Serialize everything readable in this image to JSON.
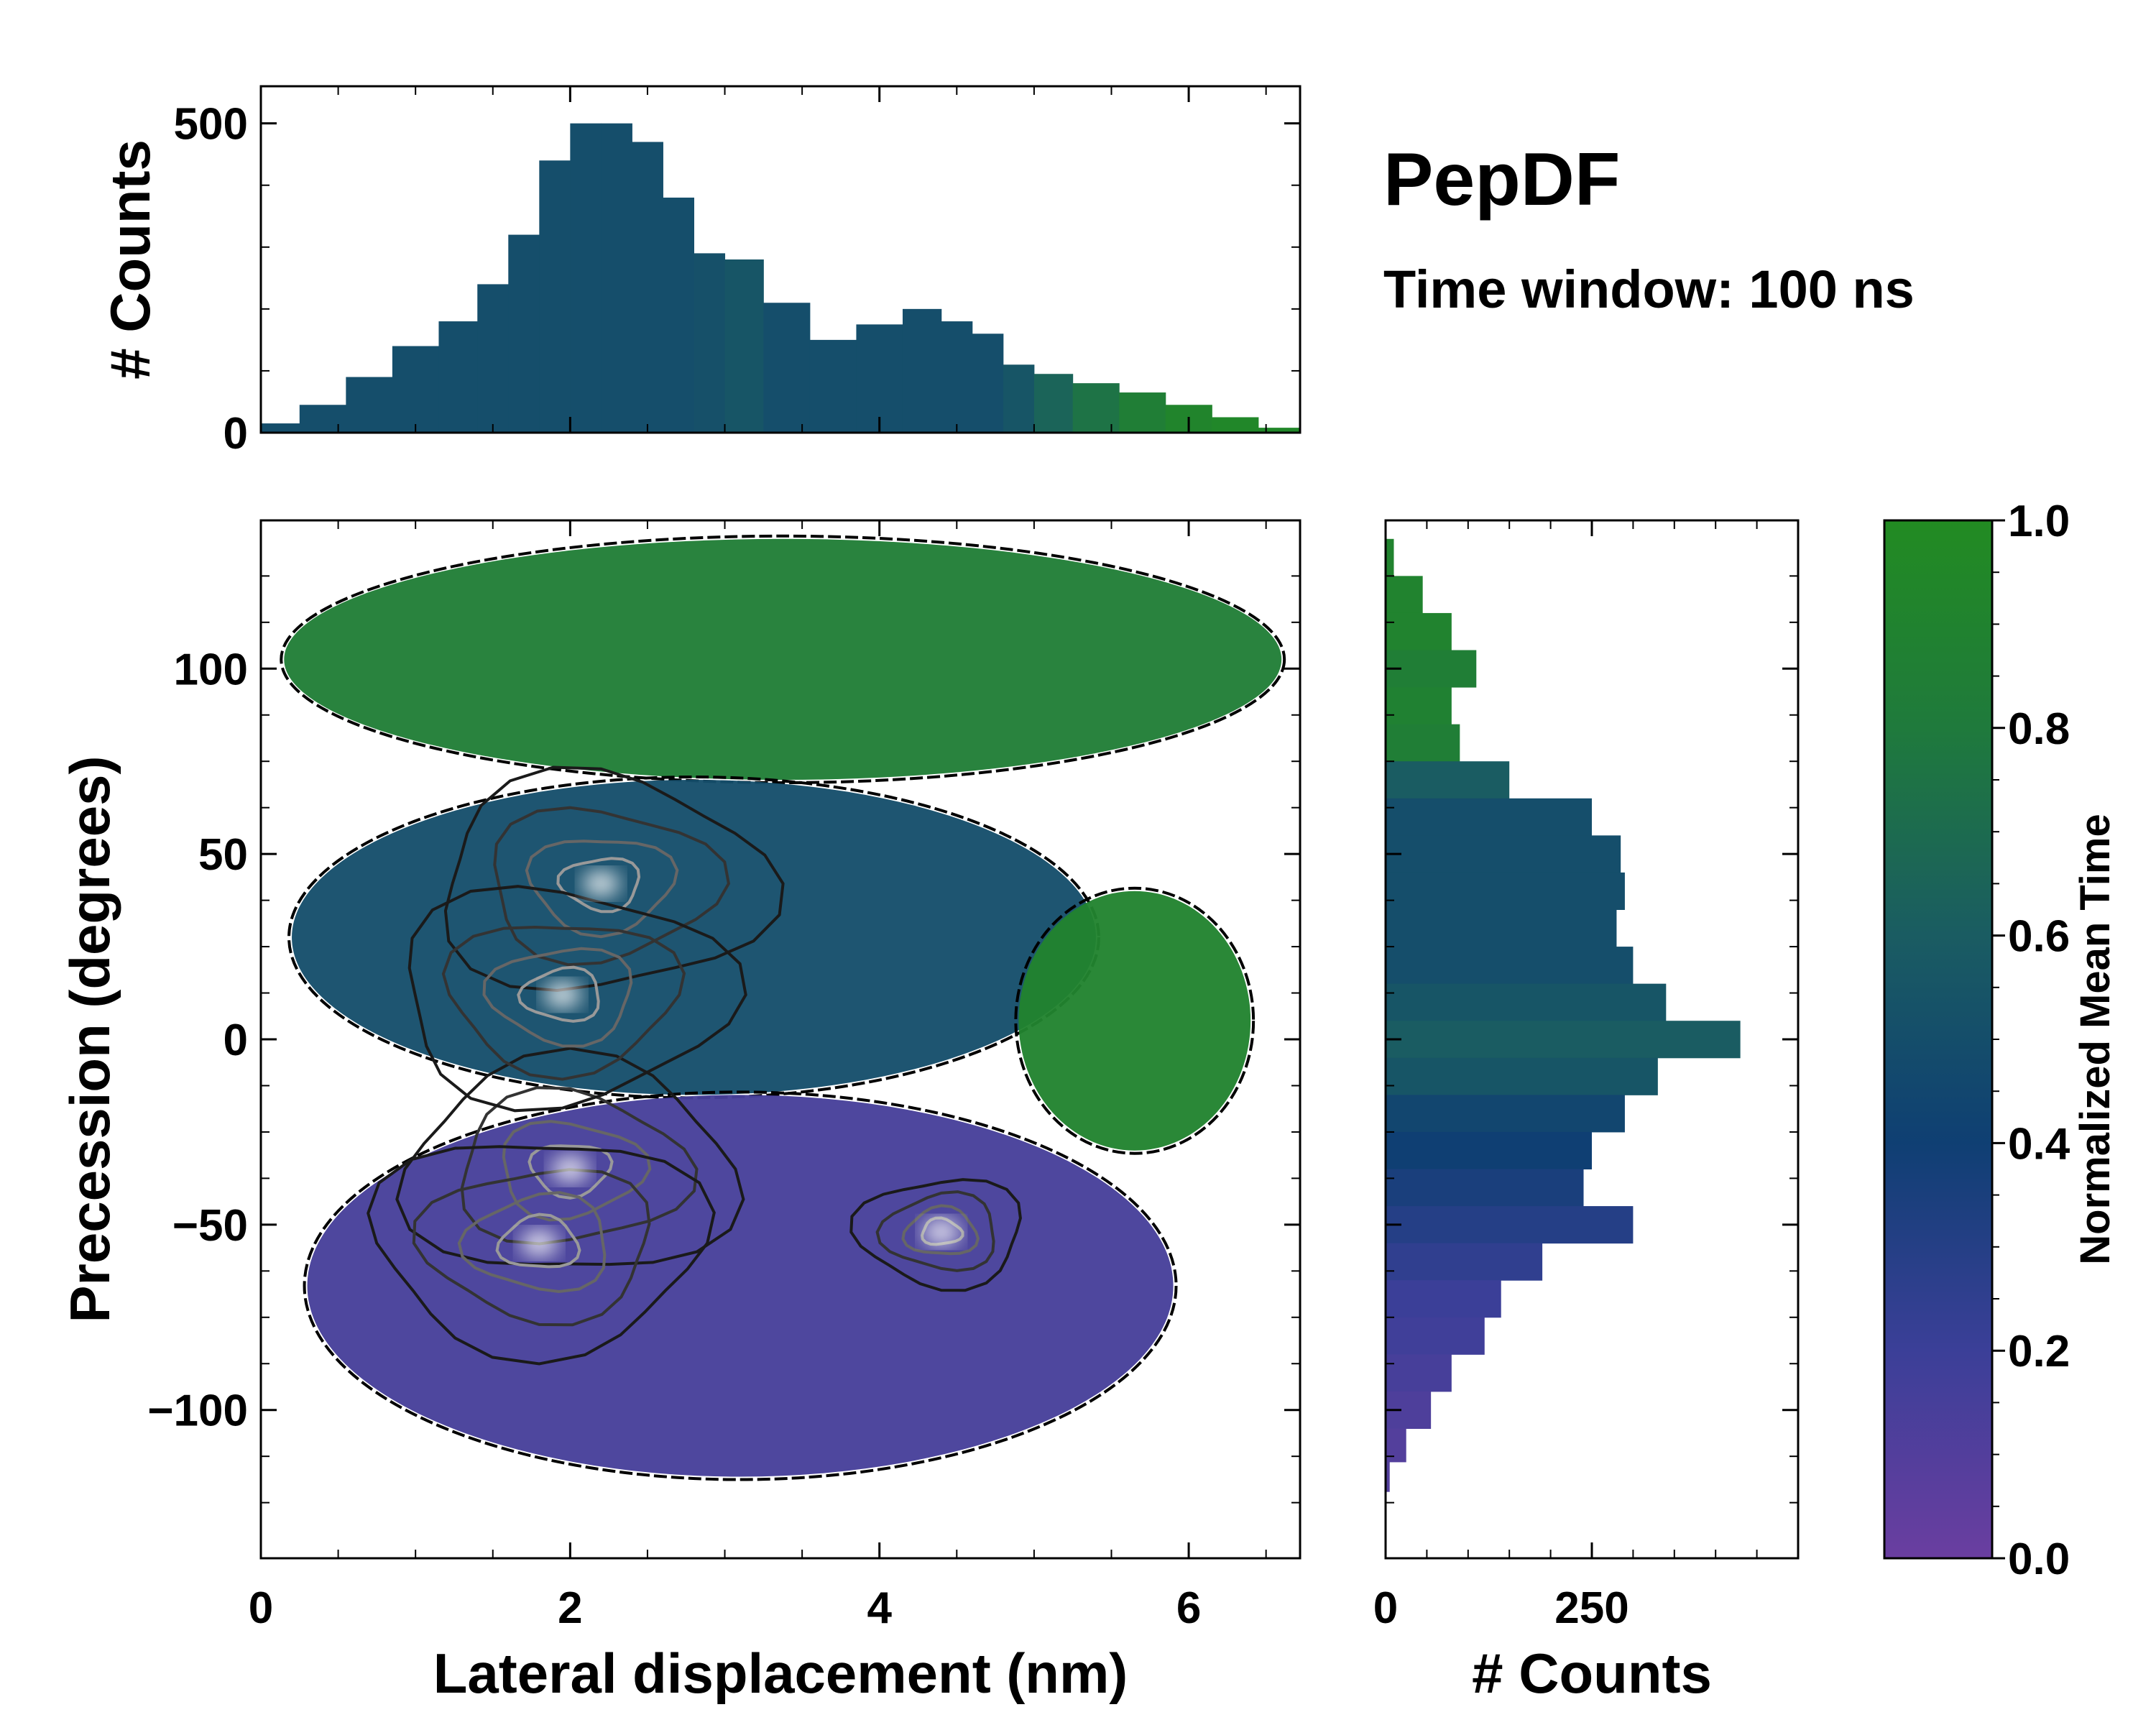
{
  "figure": {
    "title": "PepDF",
    "subtitle": "Time window: 100 ns"
  },
  "chart_data": [
    {
      "id": "joint",
      "type": "heatmap",
      "xlabel": "Lateral displacement (nm)",
      "ylabel": "Precession (degrees)",
      "xlim": [
        0,
        6.72
      ],
      "ylim": [
        -140,
        140
      ],
      "xticks": [
        0,
        2,
        4,
        6
      ],
      "yticks": [
        -100,
        -50,
        0,
        50,
        100
      ],
      "ytick_labels": [
        "−100",
        "−50",
        "0",
        "50",
        "100"
      ],
      "regions": [
        {
          "name": "upper",
          "mean_time": 0.85,
          "x_range": [
            0.15,
            6.6
          ],
          "y_range": [
            70,
            135
          ]
        },
        {
          "name": "central",
          "mean_time": 0.5,
          "x_range": [
            0.2,
            5.4
          ],
          "y_range": [
            -15,
            70
          ]
        },
        {
          "name": "right-lobe",
          "mean_time": 0.9,
          "x_range": [
            4.9,
            6.4
          ],
          "y_range": [
            -30,
            40
          ]
        },
        {
          "name": "lower",
          "mean_time": 0.15,
          "x_range": [
            0.3,
            5.9
          ],
          "y_range": [
            -118,
            -15
          ]
        }
      ],
      "density_peaks": [
        {
          "x": 2.0,
          "y": -35
        },
        {
          "x": 2.2,
          "y": 42
        },
        {
          "x": 1.95,
          "y": 12
        },
        {
          "x": 1.8,
          "y": -55
        },
        {
          "x": 4.4,
          "y": -52
        }
      ]
    },
    {
      "id": "top-marginal",
      "type": "bar",
      "xlabel": "",
      "ylabel": "# Counts",
      "xlim": [
        0,
        6.72
      ],
      "ylim": [
        0,
        560
      ],
      "yticks": [
        0,
        500
      ],
      "x": [
        0.1,
        0.4,
        0.7,
        1.0,
        1.3,
        1.5,
        1.7,
        1.9,
        2.1,
        2.3,
        2.5,
        2.7,
        2.9,
        3.1,
        3.4,
        3.7,
        4.0,
        4.3,
        4.5,
        4.7,
        4.9,
        5.1,
        5.4,
        5.7,
        6.0,
        6.3,
        6.6
      ],
      "values": [
        15,
        45,
        90,
        140,
        180,
        240,
        320,
        440,
        500,
        500,
        470,
        380,
        290,
        280,
        210,
        150,
        175,
        200,
        180,
        160,
        110,
        95,
        80,
        65,
        45,
        25,
        8
      ],
      "color_time": [
        0.5,
        0.5,
        0.5,
        0.5,
        0.5,
        0.5,
        0.5,
        0.5,
        0.5,
        0.5,
        0.5,
        0.5,
        0.52,
        0.55,
        0.5,
        0.5,
        0.5,
        0.5,
        0.5,
        0.5,
        0.55,
        0.65,
        0.75,
        0.85,
        0.92,
        0.95,
        0.95
      ]
    },
    {
      "id": "right-marginal",
      "type": "bar",
      "orientation": "horizontal",
      "xlabel": "# Counts",
      "ylabel": "",
      "xlim": [
        0,
        500
      ],
      "ylim": [
        -140,
        140
      ],
      "xticks": [
        0,
        250
      ],
      "y": [
        130,
        120,
        110,
        100,
        90,
        80,
        70,
        60,
        50,
        40,
        30,
        20,
        10,
        0,
        -10,
        -20,
        -30,
        -40,
        -50,
        -60,
        -70,
        -80,
        -90,
        -100,
        -110,
        -118
      ],
      "values": [
        10,
        45,
        80,
        110,
        80,
        90,
        150,
        250,
        285,
        290,
        280,
        300,
        340,
        430,
        330,
        290,
        250,
        240,
        300,
        190,
        140,
        120,
        80,
        55,
        25,
        5
      ],
      "color_time": [
        0.9,
        0.9,
        0.9,
        0.85,
        0.88,
        0.85,
        0.6,
        0.5,
        0.5,
        0.5,
        0.5,
        0.5,
        0.55,
        0.6,
        0.55,
        0.45,
        0.4,
        0.35,
        0.3,
        0.25,
        0.2,
        0.18,
        0.15,
        0.12,
        0.1,
        0.1
      ]
    },
    {
      "id": "colorbar",
      "type": "colorbar",
      "label": "Normalized Mean Time",
      "range": [
        0,
        1
      ],
      "ticks": [
        "0.0",
        "0.2",
        "0.4",
        "0.6",
        "0.8",
        "1.0"
      ],
      "colors": [
        "#6a3ea0",
        "#3b3f98",
        "#0f3f73",
        "#1a5c62",
        "#1f7a3c",
        "#228b22"
      ]
    }
  ]
}
